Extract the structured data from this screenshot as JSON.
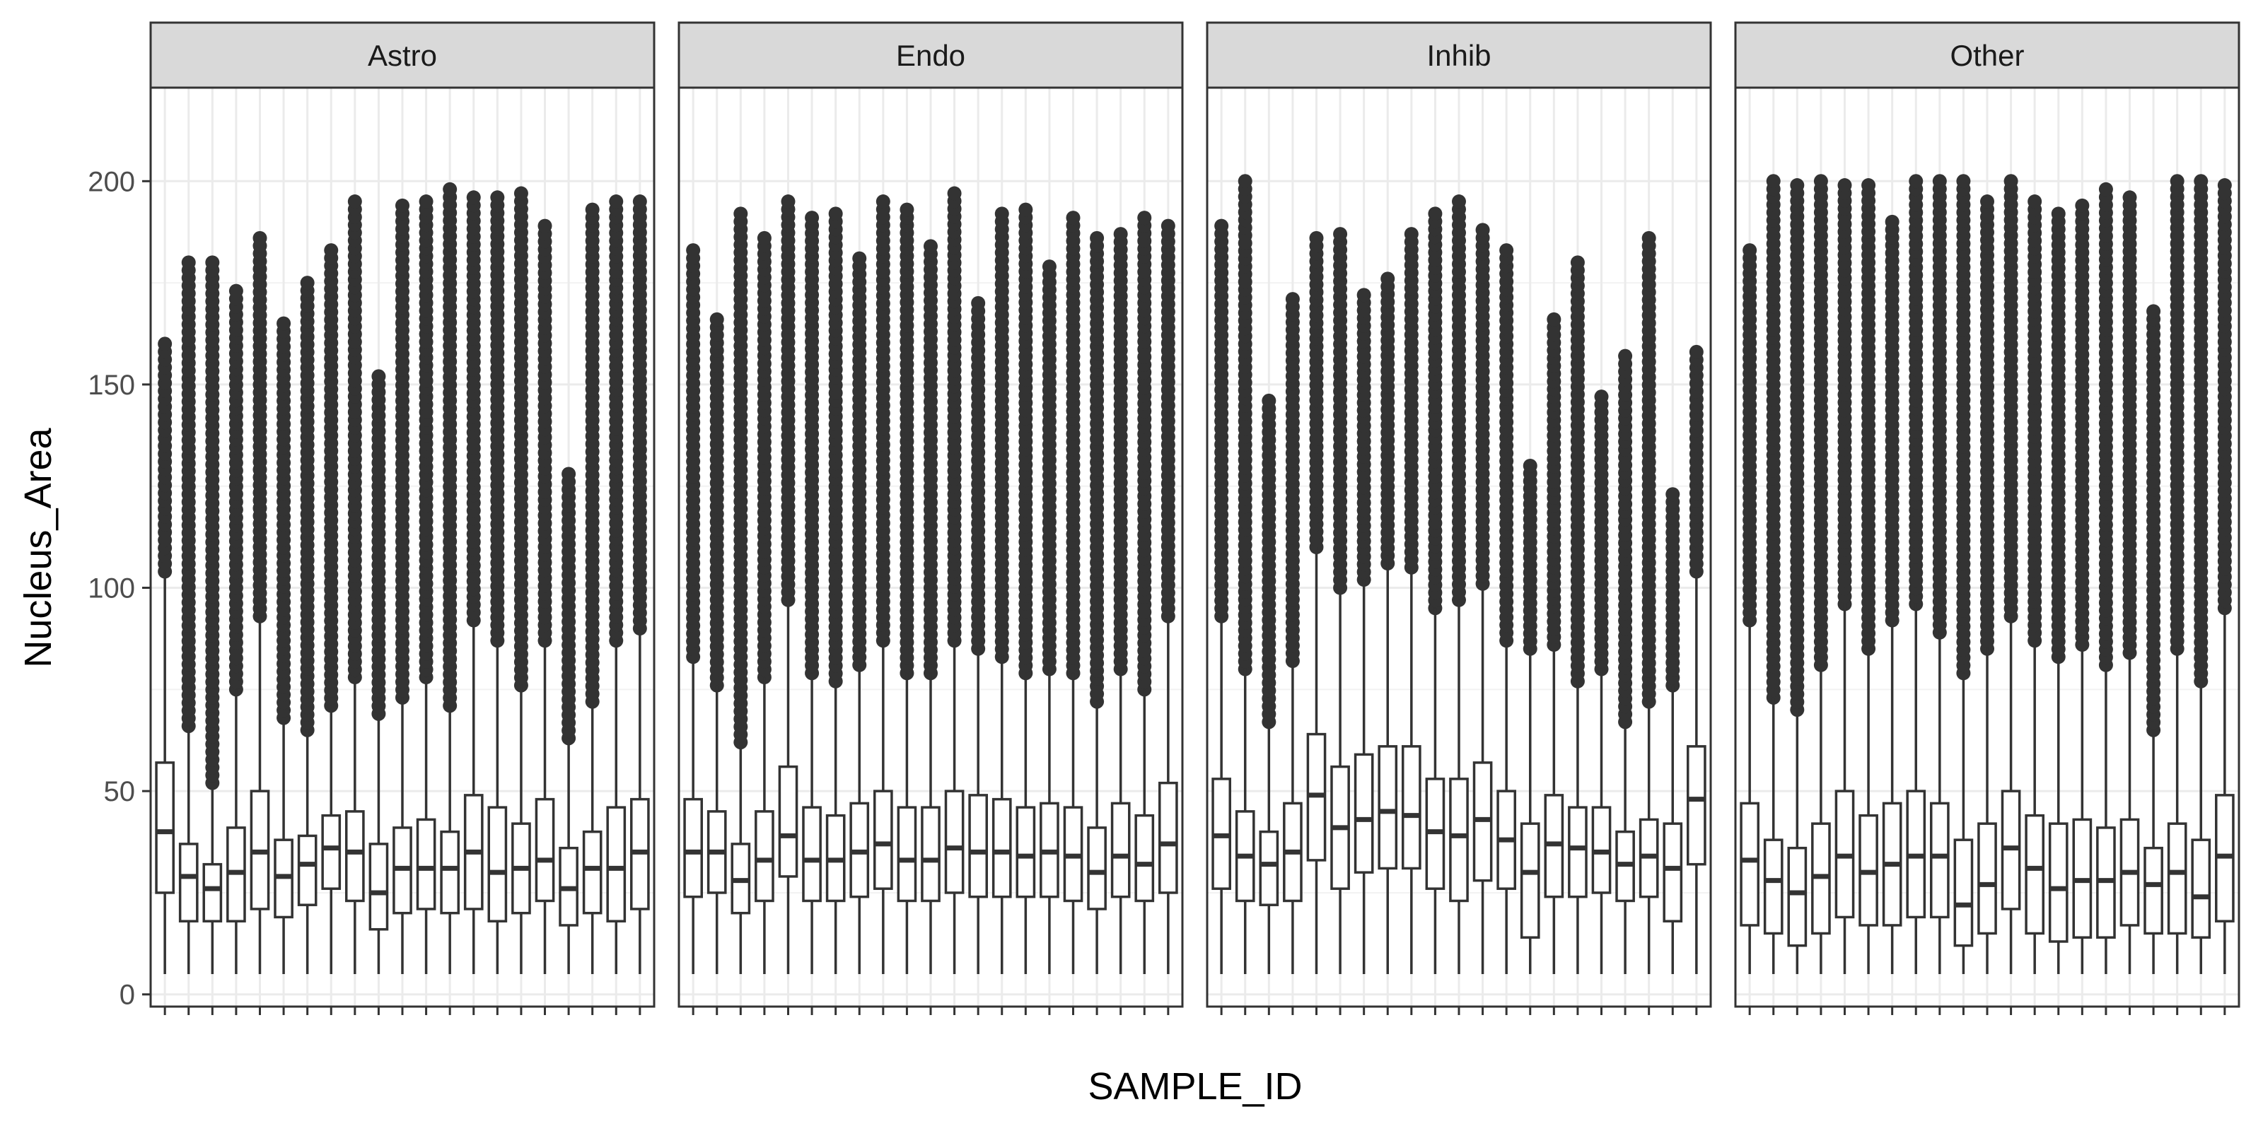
{
  "chart_data": {
    "type": "box",
    "xlabel": "SAMPLE_ID",
    "ylabel": "Nucleus_Area",
    "ylim": [
      -3,
      223
    ],
    "yticks": [
      0,
      50,
      100,
      150,
      200
    ],
    "grid": true,
    "facets": [
      {
        "name": "Astro",
        "boxes": [
          {
            "q1": 25,
            "median": 40,
            "q3": 57,
            "whisker_low": 5,
            "whisker_high": 104,
            "outlier_high": 160
          },
          {
            "q1": 18,
            "median": 29,
            "q3": 37,
            "whisker_low": 5,
            "whisker_high": 66,
            "outlier_high": 180
          },
          {
            "q1": 18,
            "median": 26,
            "q3": 32,
            "whisker_low": 5,
            "whisker_high": 52,
            "outlier_high": 180
          },
          {
            "q1": 18,
            "median": 30,
            "q3": 41,
            "whisker_low": 5,
            "whisker_high": 75,
            "outlier_high": 173
          },
          {
            "q1": 21,
            "median": 35,
            "q3": 50,
            "whisker_low": 5,
            "whisker_high": 93,
            "outlier_high": 186
          },
          {
            "q1": 19,
            "median": 29,
            "q3": 38,
            "whisker_low": 5,
            "whisker_high": 68,
            "outlier_high": 165
          },
          {
            "q1": 22,
            "median": 32,
            "q3": 39,
            "whisker_low": 5,
            "whisker_high": 65,
            "outlier_high": 175
          },
          {
            "q1": 26,
            "median": 36,
            "q3": 44,
            "whisker_low": 5,
            "whisker_high": 71,
            "outlier_high": 183
          },
          {
            "q1": 23,
            "median": 35,
            "q3": 45,
            "whisker_low": 5,
            "whisker_high": 78,
            "outlier_high": 195
          },
          {
            "q1": 16,
            "median": 25,
            "q3": 37,
            "whisker_low": 5,
            "whisker_high": 69,
            "outlier_high": 152
          },
          {
            "q1": 20,
            "median": 31,
            "q3": 41,
            "whisker_low": 5,
            "whisker_high": 73,
            "outlier_high": 194
          },
          {
            "q1": 21,
            "median": 31,
            "q3": 43,
            "whisker_low": 5,
            "whisker_high": 78,
            "outlier_high": 195
          },
          {
            "q1": 20,
            "median": 31,
            "q3": 40,
            "whisker_low": 5,
            "whisker_high": 71,
            "outlier_high": 198
          },
          {
            "q1": 21,
            "median": 35,
            "q3": 49,
            "whisker_low": 5,
            "whisker_high": 92,
            "outlier_high": 196
          },
          {
            "q1": 18,
            "median": 30,
            "q3": 46,
            "whisker_low": 5,
            "whisker_high": 87,
            "outlier_high": 196
          },
          {
            "q1": 20,
            "median": 31,
            "q3": 42,
            "whisker_low": 5,
            "whisker_high": 76,
            "outlier_high": 197
          },
          {
            "q1": 23,
            "median": 33,
            "q3": 48,
            "whisker_low": 5,
            "whisker_high": 87,
            "outlier_high": 189
          },
          {
            "q1": 17,
            "median": 26,
            "q3": 36,
            "whisker_low": 5,
            "whisker_high": 63,
            "outlier_high": 128
          },
          {
            "q1": 20,
            "median": 31,
            "q3": 40,
            "whisker_low": 5,
            "whisker_high": 72,
            "outlier_high": 193
          },
          {
            "q1": 18,
            "median": 31,
            "q3": 46,
            "whisker_low": 5,
            "whisker_high": 87,
            "outlier_high": 195
          },
          {
            "q1": 21,
            "median": 35,
            "q3": 48,
            "whisker_low": 5,
            "whisker_high": 90,
            "outlier_high": 195
          }
        ]
      },
      {
        "name": "Endo",
        "boxes": [
          {
            "q1": 24,
            "median": 35,
            "q3": 48,
            "whisker_low": 5,
            "whisker_high": 83,
            "outlier_high": 183
          },
          {
            "q1": 25,
            "median": 35,
            "q3": 45,
            "whisker_low": 5,
            "whisker_high": 76,
            "outlier_high": 166
          },
          {
            "q1": 20,
            "median": 28,
            "q3": 37,
            "whisker_low": 5,
            "whisker_high": 62,
            "outlier_high": 192
          },
          {
            "q1": 23,
            "median": 33,
            "q3": 45,
            "whisker_low": 5,
            "whisker_high": 78,
            "outlier_high": 186
          },
          {
            "q1": 29,
            "median": 39,
            "q3": 56,
            "whisker_low": 5,
            "whisker_high": 97,
            "outlier_high": 195
          },
          {
            "q1": 23,
            "median": 33,
            "q3": 46,
            "whisker_low": 5,
            "whisker_high": 79,
            "outlier_high": 191
          },
          {
            "q1": 23,
            "median": 33,
            "q3": 44,
            "whisker_low": 5,
            "whisker_high": 77,
            "outlier_high": 192
          },
          {
            "q1": 24,
            "median": 35,
            "q3": 47,
            "whisker_low": 5,
            "whisker_high": 81,
            "outlier_high": 181
          },
          {
            "q1": 26,
            "median": 37,
            "q3": 50,
            "whisker_low": 5,
            "whisker_high": 87,
            "outlier_high": 195
          },
          {
            "q1": 23,
            "median": 33,
            "q3": 46,
            "whisker_low": 5,
            "whisker_high": 79,
            "outlier_high": 193
          },
          {
            "q1": 23,
            "median": 33,
            "q3": 46,
            "whisker_low": 5,
            "whisker_high": 79,
            "outlier_high": 184
          },
          {
            "q1": 25,
            "median": 36,
            "q3": 50,
            "whisker_low": 5,
            "whisker_high": 87,
            "outlier_high": 197
          },
          {
            "q1": 24,
            "median": 35,
            "q3": 49,
            "whisker_low": 5,
            "whisker_high": 85,
            "outlier_high": 170
          },
          {
            "q1": 24,
            "median": 35,
            "q3": 48,
            "whisker_low": 5,
            "whisker_high": 83,
            "outlier_high": 192
          },
          {
            "q1": 24,
            "median": 34,
            "q3": 46,
            "whisker_low": 5,
            "whisker_high": 79,
            "outlier_high": 193
          },
          {
            "q1": 24,
            "median": 35,
            "q3": 47,
            "whisker_low": 5,
            "whisker_high": 80,
            "outlier_high": 179
          },
          {
            "q1": 23,
            "median": 34,
            "q3": 46,
            "whisker_low": 5,
            "whisker_high": 79,
            "outlier_high": 191
          },
          {
            "q1": 21,
            "median": 30,
            "q3": 41,
            "whisker_low": 5,
            "whisker_high": 72,
            "outlier_high": 186
          },
          {
            "q1": 24,
            "median": 34,
            "q3": 47,
            "whisker_low": 5,
            "whisker_high": 80,
            "outlier_high": 187
          },
          {
            "q1": 23,
            "median": 32,
            "q3": 44,
            "whisker_low": 5,
            "whisker_high": 75,
            "outlier_high": 191
          },
          {
            "q1": 25,
            "median": 37,
            "q3": 52,
            "whisker_low": 5,
            "whisker_high": 93,
            "outlier_high": 189
          }
        ]
      },
      {
        "name": "Inhib",
        "boxes": [
          {
            "q1": 26,
            "median": 39,
            "q3": 53,
            "whisker_low": 5,
            "whisker_high": 93,
            "outlier_high": 189
          },
          {
            "q1": 23,
            "median": 34,
            "q3": 45,
            "whisker_low": 5,
            "whisker_high": 80,
            "outlier_high": 200
          },
          {
            "q1": 22,
            "median": 32,
            "q3": 40,
            "whisker_low": 5,
            "whisker_high": 67,
            "outlier_high": 146
          },
          {
            "q1": 23,
            "median": 35,
            "q3": 47,
            "whisker_low": 5,
            "whisker_high": 82,
            "outlier_high": 171
          },
          {
            "q1": 33,
            "median": 49,
            "q3": 64,
            "whisker_low": 5,
            "whisker_high": 110,
            "outlier_high": 186
          },
          {
            "q1": 26,
            "median": 41,
            "q3": 56,
            "whisker_low": 5,
            "whisker_high": 100,
            "outlier_high": 187
          },
          {
            "q1": 30,
            "median": 43,
            "q3": 59,
            "whisker_low": 5,
            "whisker_high": 102,
            "outlier_high": 172
          },
          {
            "q1": 31,
            "median": 45,
            "q3": 61,
            "whisker_low": 5,
            "whisker_high": 106,
            "outlier_high": 176
          },
          {
            "q1": 31,
            "median": 44,
            "q3": 61,
            "whisker_low": 5,
            "whisker_high": 105,
            "outlier_high": 187
          },
          {
            "q1": 26,
            "median": 40,
            "q3": 53,
            "whisker_low": 5,
            "whisker_high": 95,
            "outlier_high": 192
          },
          {
            "q1": 23,
            "median": 39,
            "q3": 53,
            "whisker_low": 5,
            "whisker_high": 97,
            "outlier_high": 195
          },
          {
            "q1": 28,
            "median": 43,
            "q3": 57,
            "whisker_low": 5,
            "whisker_high": 101,
            "outlier_high": 188
          },
          {
            "q1": 26,
            "median": 38,
            "q3": 50,
            "whisker_low": 5,
            "whisker_high": 87,
            "outlier_high": 183
          },
          {
            "q1": 14,
            "median": 30,
            "q3": 42,
            "whisker_low": 5,
            "whisker_high": 85,
            "outlier_high": 130
          },
          {
            "q1": 24,
            "median": 37,
            "q3": 49,
            "whisker_low": 5,
            "whisker_high": 86,
            "outlier_high": 166
          },
          {
            "q1": 24,
            "median": 36,
            "q3": 46,
            "whisker_low": 5,
            "whisker_high": 77,
            "outlier_high": 180
          },
          {
            "q1": 25,
            "median": 35,
            "q3": 46,
            "whisker_low": 5,
            "whisker_high": 80,
            "outlier_high": 147
          },
          {
            "q1": 23,
            "median": 32,
            "q3": 40,
            "whisker_low": 5,
            "whisker_high": 67,
            "outlier_high": 157
          },
          {
            "q1": 24,
            "median": 34,
            "q3": 43,
            "whisker_low": 5,
            "whisker_high": 72,
            "outlier_high": 186
          },
          {
            "q1": 18,
            "median": 31,
            "q3": 42,
            "whisker_low": 5,
            "whisker_high": 76,
            "outlier_high": 123
          },
          {
            "q1": 32,
            "median": 48,
            "q3": 61,
            "whisker_low": 5,
            "whisker_high": 104,
            "outlier_high": 158
          }
        ]
      },
      {
        "name": "Other",
        "boxes": [
          {
            "q1": 17,
            "median": 33,
            "q3": 47,
            "whisker_low": 5,
            "whisker_high": 92,
            "outlier_high": 183
          },
          {
            "q1": 15,
            "median": 28,
            "q3": 38,
            "whisker_low": 5,
            "whisker_high": 73,
            "outlier_high": 200
          },
          {
            "q1": 12,
            "median": 25,
            "q3": 36,
            "whisker_low": 5,
            "whisker_high": 70,
            "outlier_high": 199
          },
          {
            "q1": 15,
            "median": 29,
            "q3": 42,
            "whisker_low": 5,
            "whisker_high": 81,
            "outlier_high": 200
          },
          {
            "q1": 19,
            "median": 34,
            "q3": 50,
            "whisker_low": 5,
            "whisker_high": 96,
            "outlier_high": 199
          },
          {
            "q1": 17,
            "median": 30,
            "q3": 44,
            "whisker_low": 5,
            "whisker_high": 85,
            "outlier_high": 199
          },
          {
            "q1": 17,
            "median": 32,
            "q3": 47,
            "whisker_low": 5,
            "whisker_high": 92,
            "outlier_high": 190
          },
          {
            "q1": 19,
            "median": 34,
            "q3": 50,
            "whisker_low": 5,
            "whisker_high": 96,
            "outlier_high": 200
          },
          {
            "q1": 19,
            "median": 34,
            "q3": 47,
            "whisker_low": 5,
            "whisker_high": 89,
            "outlier_high": 200
          },
          {
            "q1": 12,
            "median": 22,
            "q3": 38,
            "whisker_low": 5,
            "whisker_high": 79,
            "outlier_high": 200
          },
          {
            "q1": 15,
            "median": 27,
            "q3": 42,
            "whisker_low": 5,
            "whisker_high": 85,
            "outlier_high": 195
          },
          {
            "q1": 21,
            "median": 36,
            "q3": 50,
            "whisker_low": 5,
            "whisker_high": 93,
            "outlier_high": 200
          },
          {
            "q1": 15,
            "median": 31,
            "q3": 44,
            "whisker_low": 5,
            "whisker_high": 87,
            "outlier_high": 195
          },
          {
            "q1": 13,
            "median": 26,
            "q3": 42,
            "whisker_low": 5,
            "whisker_high": 83,
            "outlier_high": 192
          },
          {
            "q1": 14,
            "median": 28,
            "q3": 43,
            "whisker_low": 5,
            "whisker_high": 86,
            "outlier_high": 194
          },
          {
            "q1": 14,
            "median": 28,
            "q3": 41,
            "whisker_low": 5,
            "whisker_high": 81,
            "outlier_high": 198
          },
          {
            "q1": 17,
            "median": 30,
            "q3": 43,
            "whisker_low": 5,
            "whisker_high": 84,
            "outlier_high": 196
          },
          {
            "q1": 15,
            "median": 27,
            "q3": 36,
            "whisker_low": 5,
            "whisker_high": 65,
            "outlier_high": 168
          },
          {
            "q1": 15,
            "median": 30,
            "q3": 42,
            "whisker_low": 5,
            "whisker_high": 85,
            "outlier_high": 200
          },
          {
            "q1": 14,
            "median": 24,
            "q3": 38,
            "whisker_low": 5,
            "whisker_high": 77,
            "outlier_high": 200
          },
          {
            "q1": 18,
            "median": 34,
            "q3": 49,
            "whisker_low": 5,
            "whisker_high": 95,
            "outlier_high": 199
          }
        ]
      }
    ]
  }
}
